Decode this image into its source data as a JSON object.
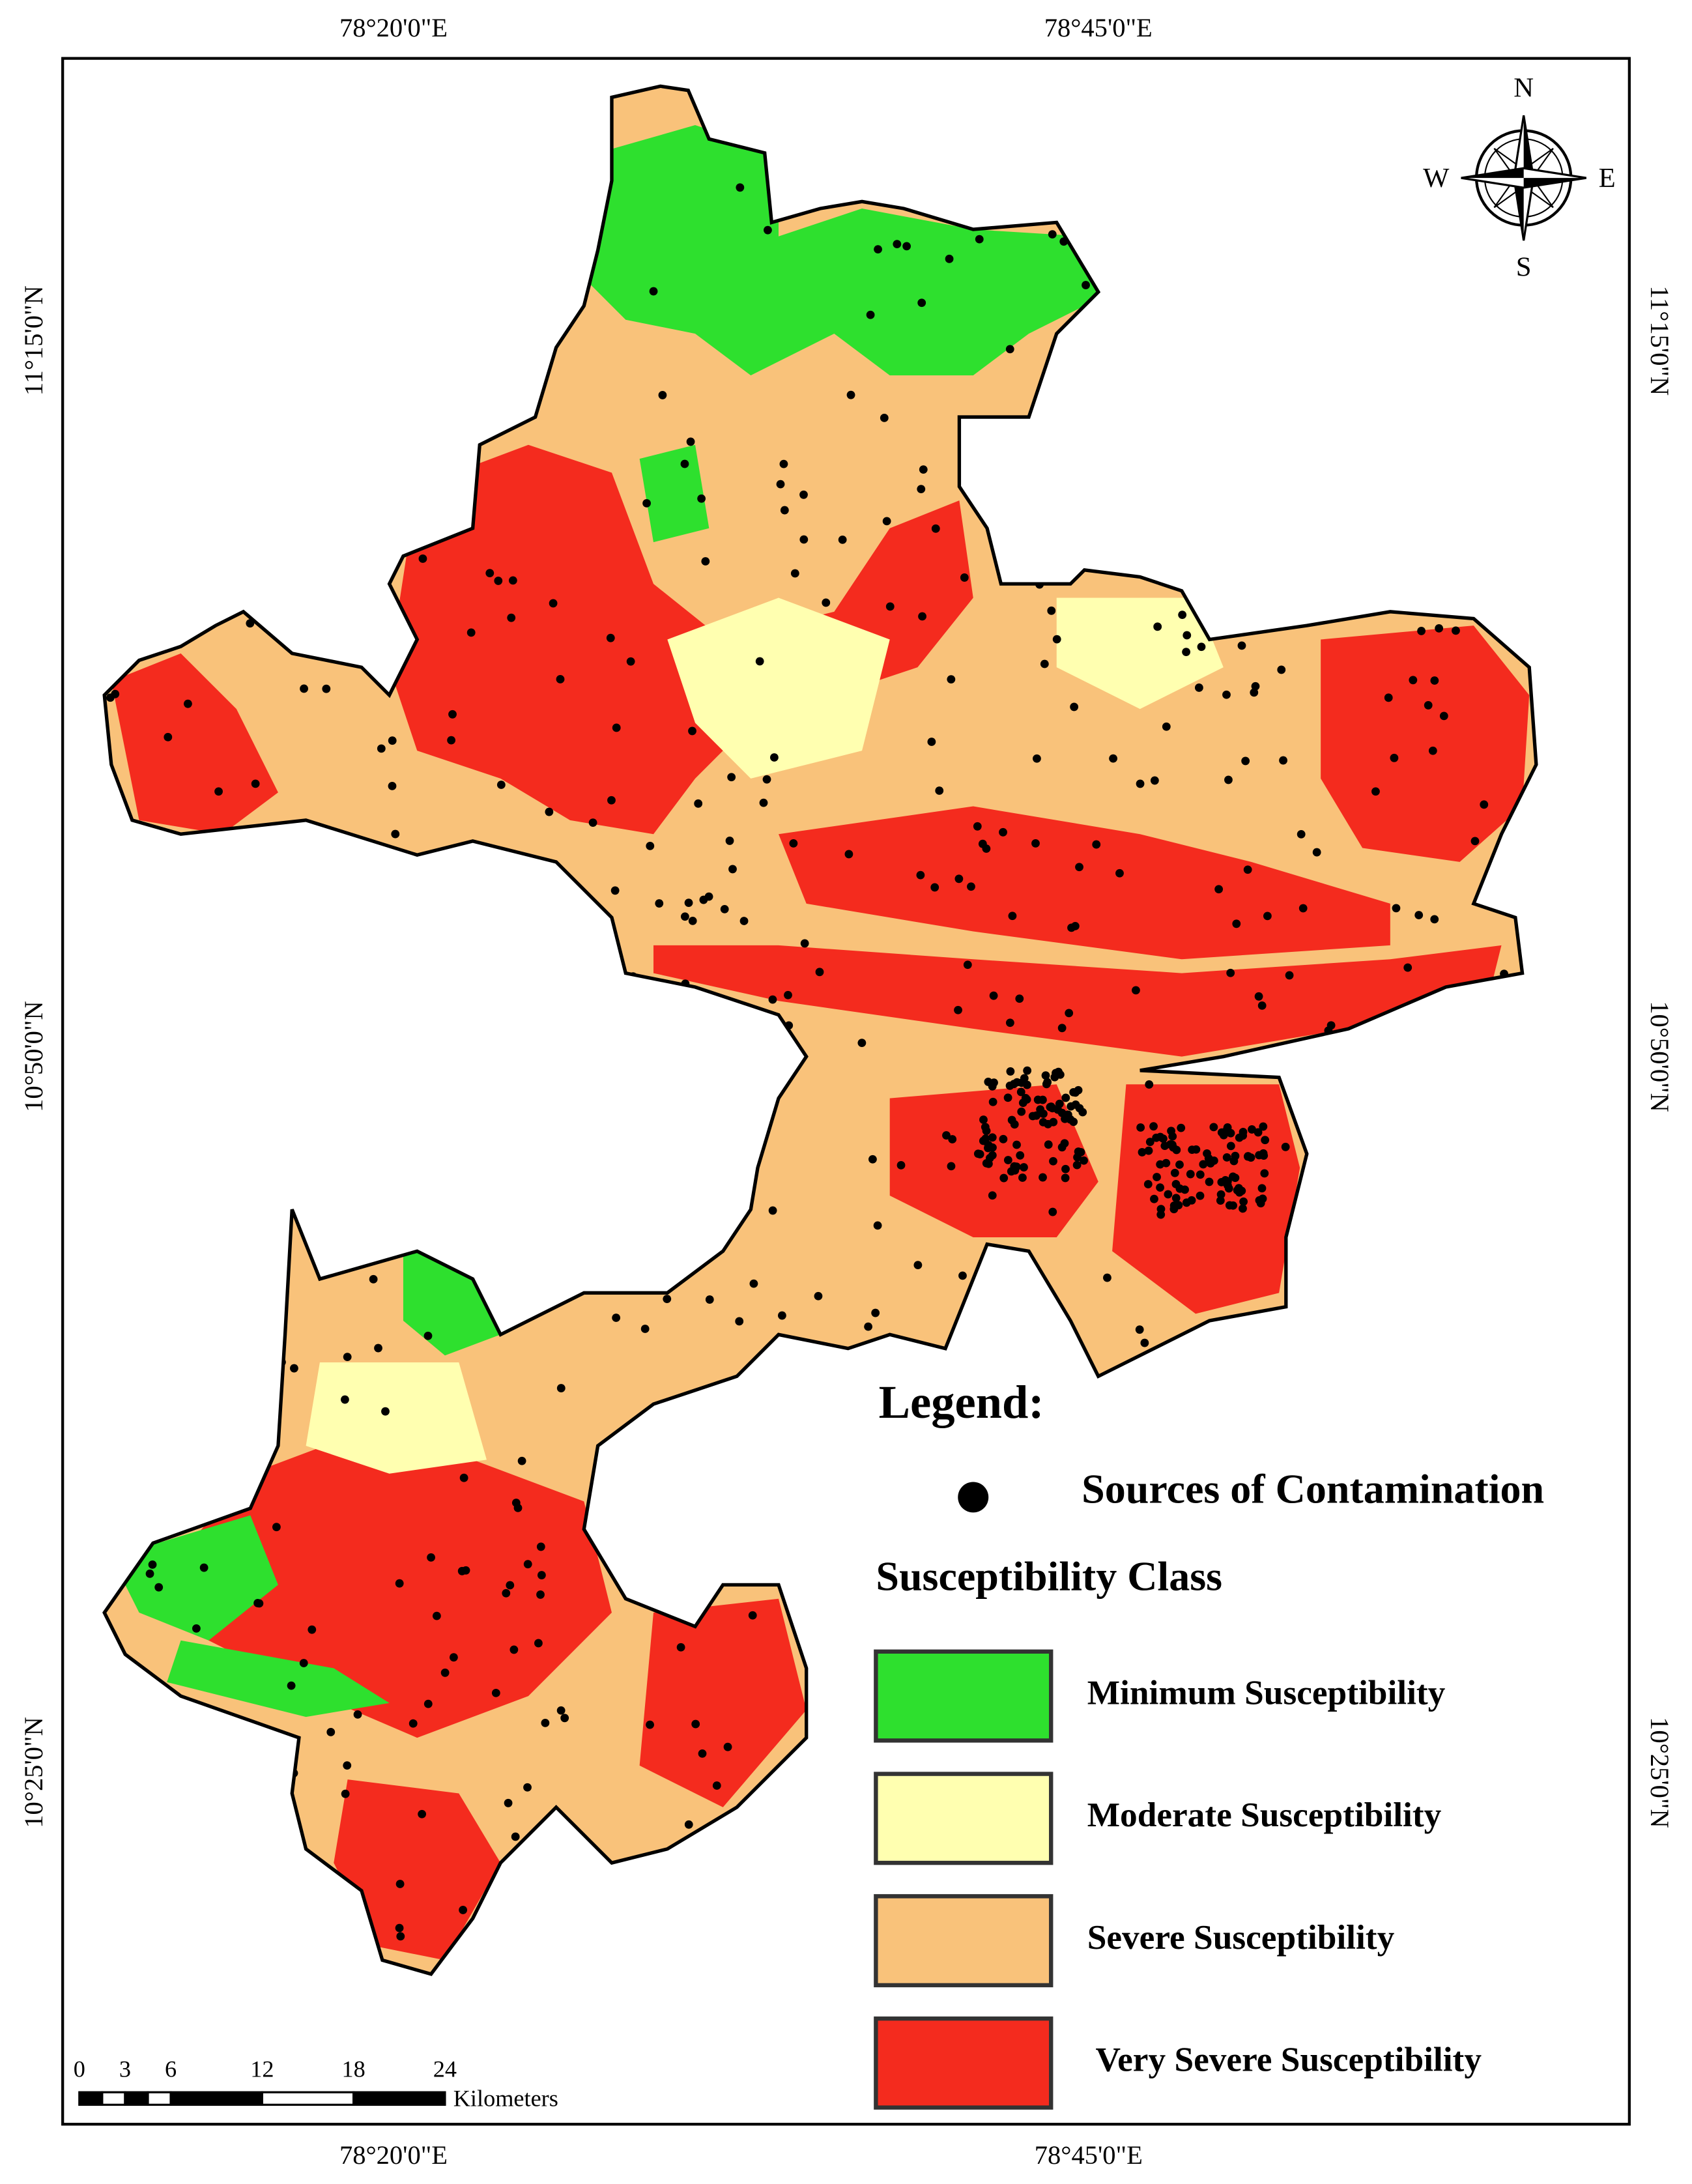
{
  "map": {
    "top_coords": [
      "78°20'0\"E",
      "78°45'0\"E"
    ],
    "bottom_coords": [
      "78°20'0\"E",
      "78°45'0\"E"
    ],
    "left_coords": [
      "11°15'0\"N",
      "10°50'0\"N",
      "10°25'0\"N"
    ],
    "right_coords": [
      "11°15'0\"N",
      "10°50'0\"N",
      "10°25'0\"N"
    ],
    "compass": {
      "n": "N",
      "s": "S",
      "e": "E",
      "w": "W"
    },
    "legend": {
      "title": "Legend:",
      "sources": "Sources of Contamination",
      "class_title": "Susceptibility Class",
      "classes": [
        {
          "label": "Minimum Susceptibility",
          "color": "#2ee02e"
        },
        {
          "label": "Moderate Susceptibility",
          "color": "#ffffb0"
        },
        {
          "label": "Severe Susceptibility",
          "color": "#f9c27a"
        },
        {
          "label": "Very Severe Susceptibility",
          "color": "#f42b1e"
        }
      ]
    },
    "scale_bar": {
      "ticks": [
        0,
        3,
        6,
        12,
        18,
        24
      ],
      "unit": "Kilometers"
    }
  }
}
